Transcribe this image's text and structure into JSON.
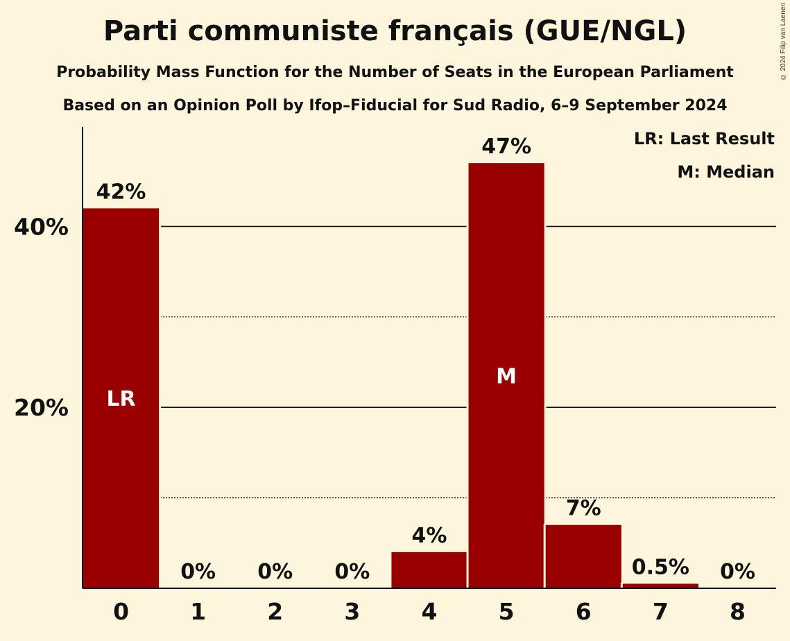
{
  "chart_data": {
    "type": "bar",
    "title": "Parti communiste français (GUE/NGL)",
    "subtitle": "Probability Mass Function for the Number of Seats in the European Parliament",
    "subtitle2": "Based on an Opinion Poll by Ifop–Fiducial for Sud Radio, 6–9 September 2024",
    "categories": [
      "0",
      "1",
      "2",
      "3",
      "4",
      "5",
      "6",
      "7",
      "8"
    ],
    "values": [
      42,
      0,
      0,
      0,
      4,
      47,
      7,
      0.5,
      0
    ],
    "value_labels": [
      "42%",
      "0%",
      "0%",
      "0%",
      "4%",
      "47%",
      "7%",
      "0.5%",
      "0%"
    ],
    "bar_markers": [
      "LR",
      "",
      "",
      "",
      "",
      "M",
      "",
      "",
      ""
    ],
    "ylim": [
      0,
      51
    ],
    "yticks": [
      20,
      40
    ],
    "ytick_labels": [
      "20%",
      "40%"
    ],
    "minor_gridlines": [
      10,
      30
    ],
    "legend": [
      "LR: Last Result",
      "M: Median"
    ],
    "legend_position": "top-right",
    "bar_color": "#990000",
    "background_color": "#fdf6dc"
  },
  "copyright": "© 2024 Filip van Laenen"
}
